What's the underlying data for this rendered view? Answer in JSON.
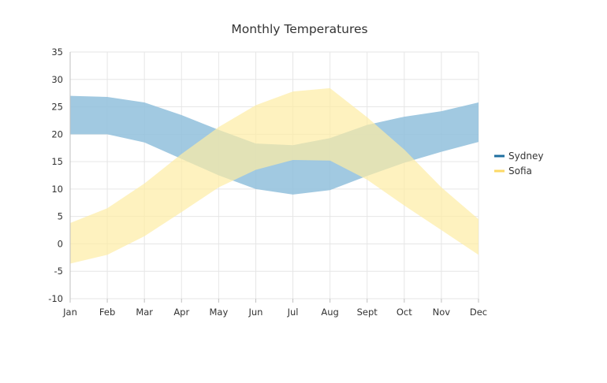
{
  "chart_data": {
    "type": "area",
    "subtype": "range-area",
    "title": "Monthly Temperatures",
    "xlabel": "",
    "ylabel": "",
    "categories": [
      "Jan",
      "Feb",
      "Mar",
      "Apr",
      "May",
      "Jun",
      "Jul",
      "Aug",
      "Sept",
      "Oct",
      "Nov",
      "Dec"
    ],
    "ylim": [
      -10,
      35
    ],
    "yticks": [
      -10,
      -5,
      0,
      5,
      10,
      15,
      20,
      25,
      30,
      35
    ],
    "grid": true,
    "legend_position": "right",
    "series": [
      {
        "name": "Sydney",
        "color": "#1f6fa0",
        "fill_color": "#94c1dd",
        "low": [
          20.0,
          20.0,
          18.5,
          15.5,
          12.5,
          10.0,
          9.0,
          9.8,
          12.4,
          14.8,
          16.8,
          18.6
        ],
        "high": [
          27.0,
          26.8,
          25.8,
          23.5,
          20.8,
          18.3,
          18.0,
          19.3,
          21.7,
          23.2,
          24.2,
          25.8
        ]
      },
      {
        "name": "Sofia",
        "color": "#fcd965",
        "fill_color": "#fdeda4",
        "low": [
          -3.6,
          -2.0,
          1.4,
          5.8,
          10.3,
          13.5,
          15.3,
          15.2,
          11.7,
          7.0,
          2.5,
          -2.0
        ],
        "high": [
          3.8,
          6.5,
          11.0,
          16.4,
          21.3,
          25.3,
          27.8,
          28.4,
          23.1,
          17.2,
          10.3,
          4.5
        ]
      }
    ]
  }
}
